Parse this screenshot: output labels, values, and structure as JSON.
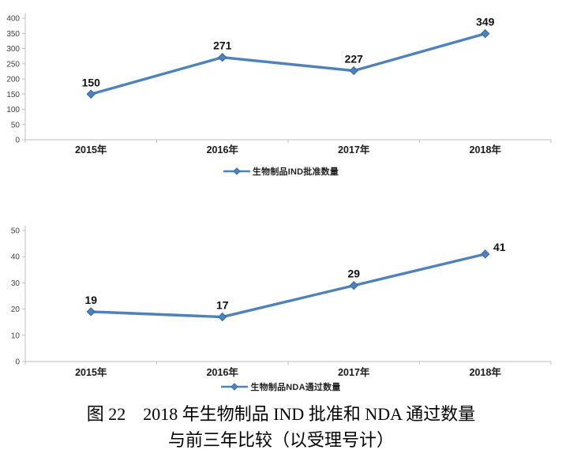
{
  "figure": {
    "caption_line1": "图 22　2018 年生物制品 IND 批准和 NDA 通过数量",
    "caption_line2": "与前三年比较（以受理号计）"
  },
  "accent_color": "#4F81BD",
  "axis_color": "#BFBFBF",
  "chart_data": [
    {
      "type": "line",
      "title": "",
      "categories": [
        "2015年",
        "2016年",
        "2017年",
        "2018年"
      ],
      "series": [
        {
          "name": "生物制品IND批准数量",
          "values": [
            150,
            271,
            227,
            349
          ],
          "color": "#4F81BD",
          "marker": "diamond"
        }
      ],
      "data_labels": true,
      "label_positions": [
        "above",
        "above",
        "above",
        "above"
      ],
      "xlabel": "",
      "ylabel": "",
      "ylim": [
        0,
        400
      ],
      "ytick_step": 50,
      "grid": false,
      "legend_position": "bottom"
    },
    {
      "type": "line",
      "title": "",
      "categories": [
        "2015年",
        "2016年",
        "2017年",
        "2018年"
      ],
      "series": [
        {
          "name": "生物制品NDA通过数量",
          "values": [
            19,
            17,
            29,
            41
          ],
          "color": "#4F81BD",
          "marker": "diamond"
        }
      ],
      "data_labels": true,
      "label_positions": [
        "above",
        "above",
        "above",
        "right"
      ],
      "xlabel": "",
      "ylabel": "",
      "ylim": [
        0,
        50
      ],
      "ytick_step": 10,
      "grid": false,
      "legend_position": "bottom"
    }
  ]
}
